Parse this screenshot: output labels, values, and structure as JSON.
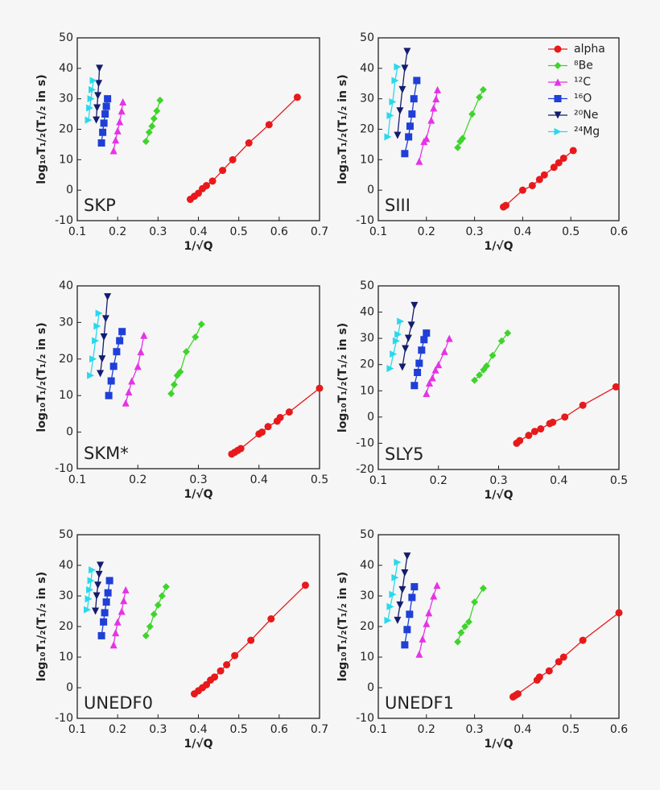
{
  "chart_data": [
    {
      "type": "line",
      "label": "SKP",
      "xlabel": "1/√Q",
      "ylabel": "log₁₀T₁/₂(T₁/₂ in s)",
      "xlim": [
        0.1,
        0.7
      ],
      "ylim": [
        -10,
        50
      ],
      "xticks": [
        0.1,
        0.2,
        0.3,
        0.4,
        0.5,
        0.6,
        0.7
      ],
      "yticks": [
        -10,
        0,
        10,
        20,
        30,
        40,
        50
      ],
      "series": [
        {
          "color": "#e8191b",
          "marker": "circle",
          "x": [
            0.38,
            0.39,
            0.4,
            0.41,
            0.42,
            0.435,
            0.46,
            0.485,
            0.525,
            0.575,
            0.645
          ],
          "values": [
            -3,
            -2,
            -1,
            0.5,
            1.5,
            3,
            6.5,
            10,
            15.5,
            21.5,
            30.5
          ]
        },
        {
          "color": "#3fd42c",
          "marker": "diamond",
          "x": [
            0.27,
            0.278,
            0.285,
            0.29,
            0.297,
            0.305
          ],
          "values": [
            16,
            19,
            21,
            23.5,
            26,
            29.5
          ]
        },
        {
          "color": "#e632e6",
          "marker": "triangle-up",
          "x": [
            0.19,
            0.195,
            0.2,
            0.205,
            0.21,
            0.213
          ],
          "values": [
            13,
            16.5,
            19.5,
            22.5,
            26,
            29
          ]
        },
        {
          "color": "#1f3fd6",
          "marker": "square",
          "x": [
            0.16,
            0.163,
            0.166,
            0.169,
            0.172,
            0.175
          ],
          "values": [
            15.5,
            19,
            22,
            25,
            27.5,
            30
          ]
        },
        {
          "color": "#141c6e",
          "marker": "triangle-down",
          "x": [
            0.147,
            0.149,
            0.151,
            0.153,
            0.155
          ],
          "values": [
            23,
            27,
            31,
            35,
            40
          ]
        },
        {
          "color": "#2ad8ec",
          "marker": "triangle-right",
          "x": [
            0.128,
            0.131,
            0.134,
            0.137,
            0.14
          ],
          "values": [
            23,
            27,
            30,
            33,
            36
          ]
        }
      ]
    },
    {
      "type": "line",
      "label": "SIII",
      "xlabel": "1/√Q",
      "ylabel": "log₁₀T₁/₂(T₁/₂ in s)",
      "legend": "upper right",
      "xlim": [
        0.1,
        0.6
      ],
      "ylim": [
        -10,
        50
      ],
      "xticks": [
        0.1,
        0.2,
        0.3,
        0.4,
        0.5,
        0.6
      ],
      "yticks": [
        -10,
        0,
        10,
        20,
        30,
        40,
        50
      ],
      "series": [
        {
          "name": "alpha",
          "color": "#e8191b",
          "marker": "circle",
          "x": [
            0.36,
            0.365,
            0.4,
            0.42,
            0.435,
            0.445,
            0.465,
            0.475,
            0.485,
            0.505
          ],
          "values": [
            -5.5,
            -5,
            0,
            1.5,
            3.5,
            5,
            7.5,
            9,
            10.5,
            13
          ]
        },
        {
          "name": "⁸Be",
          "color": "#3fd42c",
          "marker": "diamond",
          "x": [
            0.265,
            0.27,
            0.275,
            0.295,
            0.31,
            0.318
          ],
          "values": [
            14,
            16,
            17,
            25,
            30.5,
            33
          ]
        },
        {
          "name": "¹²C",
          "color": "#e632e6",
          "marker": "triangle-up",
          "x": [
            0.185,
            0.195,
            0.2,
            0.21,
            0.215,
            0.22,
            0.223
          ],
          "values": [
            9.5,
            16,
            17,
            23,
            27,
            30,
            33
          ]
        },
        {
          "name": "¹⁶O",
          "color": "#1f3fd6",
          "marker": "square",
          "x": [
            0.155,
            0.163,
            0.166,
            0.17,
            0.174,
            0.18
          ],
          "values": [
            12,
            17.5,
            21,
            25,
            30,
            36
          ]
        },
        {
          "name": "²⁰Ne",
          "color": "#141c6e",
          "marker": "triangle-down",
          "x": [
            0.14,
            0.145,
            0.15,
            0.155,
            0.16
          ],
          "values": [
            18,
            26,
            33,
            40,
            45.5
          ]
        },
        {
          "name": "²⁴Mg",
          "color": "#2ad8ec",
          "marker": "triangle-right",
          "x": [
            0.12,
            0.125,
            0.13,
            0.135,
            0.14
          ],
          "values": [
            17.5,
            24.5,
            29,
            36,
            40.5
          ]
        }
      ]
    },
    {
      "type": "line",
      "label": "SKM*",
      "xlabel": "1/√Q",
      "ylabel": "log₁₀T₁/₂(T₁/₂ in s)",
      "xlim": [
        0.1,
        0.5
      ],
      "ylim": [
        -10,
        40
      ],
      "xticks": [
        0.1,
        0.2,
        0.3,
        0.4,
        0.5
      ],
      "yticks": [
        -10,
        0,
        10,
        20,
        30,
        40
      ],
      "series": [
        {
          "color": "#e8191b",
          "marker": "circle",
          "x": [
            0.355,
            0.36,
            0.365,
            0.37,
            0.4,
            0.405,
            0.415,
            0.43,
            0.435,
            0.45,
            0.5
          ],
          "values": [
            -6,
            -5.5,
            -5,
            -4.5,
            -0.5,
            0,
            1.5,
            3,
            4,
            5.5,
            12
          ]
        },
        {
          "color": "#3fd42c",
          "marker": "diamond",
          "x": [
            0.255,
            0.26,
            0.265,
            0.27,
            0.28,
            0.295,
            0.305
          ],
          "values": [
            10.5,
            13,
            15.5,
            16.5,
            22,
            26,
            29.5
          ]
        },
        {
          "color": "#e632e6",
          "marker": "triangle-up",
          "x": [
            0.18,
            0.185,
            0.19,
            0.2,
            0.205,
            0.21
          ],
          "values": [
            8,
            11,
            14,
            18,
            22,
            26.5
          ]
        },
        {
          "color": "#1f3fd6",
          "marker": "square",
          "x": [
            0.152,
            0.156,
            0.16,
            0.165,
            0.17,
            0.174
          ],
          "values": [
            10,
            14,
            18,
            22,
            25,
            27.5
          ]
        },
        {
          "color": "#141c6e",
          "marker": "triangle-down",
          "x": [
            0.138,
            0.141,
            0.144,
            0.147,
            0.15
          ],
          "values": [
            16,
            20,
            26,
            31,
            37
          ]
        },
        {
          "color": "#2ad8ec",
          "marker": "triangle-right",
          "x": [
            0.122,
            0.126,
            0.13,
            0.133,
            0.136
          ],
          "values": [
            15.5,
            20,
            25,
            29,
            32.5
          ]
        }
      ]
    },
    {
      "type": "line",
      "label": "SLY5",
      "xlabel": "1/√Q",
      "ylabel": "log₁₀T₁/₂(T₁/₂ in s)",
      "xlim": [
        0.1,
        0.5
      ],
      "ylim": [
        -20,
        50
      ],
      "xticks": [
        0.1,
        0.2,
        0.3,
        0.4,
        0.5
      ],
      "yticks": [
        -20,
        -10,
        0,
        10,
        20,
        30,
        40,
        50
      ],
      "series": [
        {
          "color": "#e8191b",
          "marker": "circle",
          "x": [
            0.33,
            0.335,
            0.35,
            0.36,
            0.37,
            0.385,
            0.39,
            0.41,
            0.44,
            0.495
          ],
          "values": [
            -10,
            -9,
            -7,
            -5.5,
            -4.5,
            -2.5,
            -2,
            0,
            4.5,
            11.5
          ]
        },
        {
          "color": "#3fd42c",
          "marker": "diamond",
          "x": [
            0.26,
            0.268,
            0.275,
            0.28,
            0.29,
            0.305,
            0.315
          ],
          "values": [
            14,
            16,
            18,
            19.5,
            23.5,
            29,
            32
          ]
        },
        {
          "color": "#e632e6",
          "marker": "triangle-up",
          "x": [
            0.18,
            0.185,
            0.19,
            0.195,
            0.2,
            0.21,
            0.218
          ],
          "values": [
            9,
            13,
            15,
            18,
            20,
            25,
            30
          ]
        },
        {
          "color": "#1f3fd6",
          "marker": "square",
          "x": [
            0.16,
            0.165,
            0.168,
            0.172,
            0.176,
            0.18
          ],
          "values": [
            12,
            17,
            20.5,
            25.5,
            29.5,
            32
          ]
        },
        {
          "color": "#141c6e",
          "marker": "triangle-down",
          "x": [
            0.14,
            0.145,
            0.15,
            0.155,
            0.16
          ],
          "values": [
            19,
            26,
            30,
            35,
            42.5
          ]
        },
        {
          "color": "#2ad8ec",
          "marker": "triangle-right",
          "x": [
            0.12,
            0.125,
            0.13,
            0.133,
            0.137
          ],
          "values": [
            18.5,
            24,
            29,
            31.5,
            36.5
          ]
        }
      ]
    },
    {
      "type": "line",
      "label": "UNEDF0",
      "xlabel": "1/√Q",
      "ylabel": "log₁₀T₁/₂(T₁/₂ in s)",
      "xlim": [
        0.1,
        0.7
      ],
      "ylim": [
        -10,
        50
      ],
      "xticks": [
        0.1,
        0.2,
        0.3,
        0.4,
        0.5,
        0.6,
        0.7
      ],
      "yticks": [
        -10,
        0,
        10,
        20,
        30,
        40,
        50
      ],
      "series": [
        {
          "color": "#e8191b",
          "marker": "circle",
          "x": [
            0.39,
            0.4,
            0.41,
            0.42,
            0.43,
            0.44,
            0.455,
            0.47,
            0.49,
            0.53,
            0.58,
            0.665
          ],
          "values": [
            -2,
            -1,
            0,
            1,
            2.5,
            3.5,
            5.5,
            7.5,
            10.5,
            15.5,
            22.5,
            33.5
          ]
        },
        {
          "color": "#3fd42c",
          "marker": "diamond",
          "x": [
            0.27,
            0.28,
            0.29,
            0.3,
            0.31,
            0.32
          ],
          "values": [
            17,
            20,
            24,
            27,
            30,
            33
          ]
        },
        {
          "color": "#e632e6",
          "marker": "triangle-up",
          "x": [
            0.19,
            0.195,
            0.2,
            0.21,
            0.215,
            0.22
          ],
          "values": [
            14,
            18,
            21.5,
            25,
            28.5,
            32
          ]
        },
        {
          "color": "#1f3fd6",
          "marker": "square",
          "x": [
            0.16,
            0.165,
            0.168,
            0.172,
            0.176,
            0.18
          ],
          "values": [
            17,
            21.5,
            24.5,
            28,
            31,
            35
          ]
        },
        {
          "color": "#141c6e",
          "marker": "triangle-down",
          "x": [
            0.145,
            0.148,
            0.151,
            0.154,
            0.157
          ],
          "values": [
            25,
            30,
            33.5,
            37,
            40
          ]
        },
        {
          "color": "#2ad8ec",
          "marker": "triangle-right",
          "x": [
            0.125,
            0.128,
            0.131,
            0.134,
            0.137
          ],
          "values": [
            25.5,
            29,
            32,
            35,
            38.5
          ]
        }
      ]
    },
    {
      "type": "line",
      "label": "UNEDF1",
      "xlabel": "1/√Q",
      "ylabel": "log₁₀T₁/₂(T₁/₂ in s)",
      "xlim": [
        0.1,
        0.6
      ],
      "ylim": [
        -10,
        50
      ],
      "xticks": [
        0.1,
        0.2,
        0.3,
        0.4,
        0.5,
        0.6
      ],
      "yticks": [
        -10,
        0,
        10,
        20,
        30,
        40,
        50
      ],
      "series": [
        {
          "color": "#e8191b",
          "marker": "circle",
          "x": [
            0.38,
            0.385,
            0.39,
            0.43,
            0.435,
            0.455,
            0.475,
            0.485,
            0.525,
            0.6
          ],
          "values": [
            -3,
            -2.5,
            -2,
            2.5,
            3.5,
            5.5,
            8.5,
            10,
            15.5,
            24.5
          ]
        },
        {
          "color": "#3fd42c",
          "marker": "diamond",
          "x": [
            0.265,
            0.272,
            0.28,
            0.288,
            0.3,
            0.318
          ],
          "values": [
            15,
            18,
            20,
            21.5,
            28,
            32.5
          ]
        },
        {
          "color": "#e632e6",
          "marker": "triangle-up",
          "x": [
            0.185,
            0.192,
            0.2,
            0.205,
            0.215,
            0.222
          ],
          "values": [
            11,
            16,
            21,
            24.5,
            30,
            33.5
          ]
        },
        {
          "color": "#1f3fd6",
          "marker": "square",
          "x": [
            0.155,
            0.16,
            0.165,
            0.17,
            0.175
          ],
          "values": [
            14,
            19,
            24,
            29.5,
            33
          ]
        },
        {
          "color": "#141c6e",
          "marker": "triangle-down",
          "x": [
            0.14,
            0.145,
            0.15,
            0.155,
            0.16
          ],
          "values": [
            22,
            27,
            32,
            37.5,
            43
          ]
        },
        {
          "color": "#2ad8ec",
          "marker": "triangle-right",
          "x": [
            0.12,
            0.125,
            0.13,
            0.135,
            0.14
          ],
          "values": [
            22,
            26.5,
            30.5,
            36,
            41
          ]
        }
      ]
    }
  ]
}
